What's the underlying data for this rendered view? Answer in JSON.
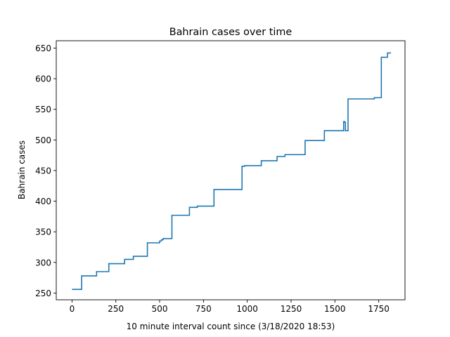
{
  "chart_data": {
    "type": "line",
    "title": "Bahrain cases over time",
    "xlabel": "10 minute interval count since (3/18/2020 18:53)",
    "ylabel": "Bahrain cases",
    "xlim": [
      -90,
      1900
    ],
    "ylim": [
      239,
      662
    ],
    "xticks": [
      0,
      250,
      500,
      750,
      1000,
      1250,
      1500,
      1750
    ],
    "yticks": [
      250,
      300,
      350,
      400,
      450,
      500,
      550,
      600,
      650
    ],
    "line_color": "#1f77b4",
    "grid": false,
    "step": "post",
    "x": [
      0,
      55,
      140,
      210,
      300,
      350,
      430,
      500,
      510,
      520,
      570,
      670,
      715,
      810,
      970,
      985,
      1080,
      1170,
      1215,
      1330,
      1440,
      1550,
      1555,
      1560,
      1575,
      1580,
      1725,
      1765,
      1800,
      1815,
      1820
    ],
    "y": [
      256,
      278,
      285,
      298,
      305,
      310,
      332,
      335,
      337,
      339,
      377,
      390,
      392,
      419,
      457,
      458,
      466,
      473,
      476,
      499,
      515,
      530,
      529,
      515,
      567,
      567,
      569,
      635,
      642,
      642,
      642
    ]
  }
}
